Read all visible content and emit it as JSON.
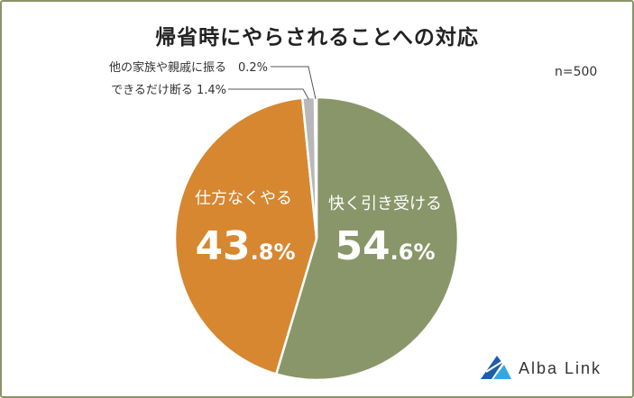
{
  "chart_data": {
    "type": "pie",
    "title": "帰省時にやらされることへの対応",
    "sample_size": "n=500",
    "slices": [
      {
        "label": "快く引き受ける",
        "value": 54.6,
        "int": "54",
        "dec": ".6%",
        "color": "#899669"
      },
      {
        "label": "仕方なくやる",
        "value": 43.8,
        "int": "43",
        "dec": ".8%",
        "color": "#d68730"
      },
      {
        "label": "できるだけ断る",
        "value": 1.4,
        "display": "できるだけ断る 1.4%",
        "color": "#b8b8b8"
      },
      {
        "label": "他の家族や親戚に振る",
        "value": 0.2,
        "display": "他の家族や親戚に振る　0.2%",
        "color": "#8a8a8a"
      }
    ]
  },
  "brand": {
    "name": "Alba Link",
    "color": "#2a6fb5"
  }
}
